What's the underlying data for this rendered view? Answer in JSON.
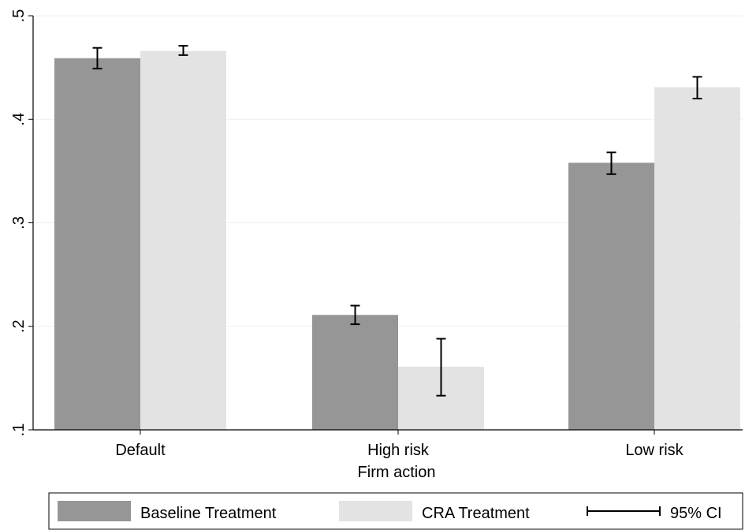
{
  "chart_data": {
    "type": "bar",
    "xlabel": "Firm action",
    "ylabel": "",
    "ylim": [
      0.1,
      0.5
    ],
    "yticks": [
      0.1,
      0.2,
      0.3,
      0.4,
      0.5
    ],
    "ytick_labels": [
      ".1",
      ".2",
      ".3",
      ".4",
      ".5"
    ],
    "grid": true,
    "categories": [
      "Default",
      "High risk",
      "Low risk"
    ],
    "series": [
      {
        "name": "Baseline Treatment",
        "color": "#969696",
        "values": [
          0.459,
          0.211,
          0.358
        ],
        "ci_low": [
          0.449,
          0.202,
          0.347
        ],
        "ci_high": [
          0.469,
          0.22,
          0.368
        ]
      },
      {
        "name": "CRA Treatment",
        "color": "#e3e3e3",
        "values": [
          0.466,
          0.161,
          0.431
        ],
        "ci_low": [
          0.462,
          0.133,
          0.42
        ],
        "ci_high": [
          0.471,
          0.188,
          0.441
        ]
      }
    ],
    "legend": {
      "position": "bottom",
      "entries": [
        "Baseline Treatment",
        "CRA Treatment",
        "95% CI"
      ]
    }
  }
}
